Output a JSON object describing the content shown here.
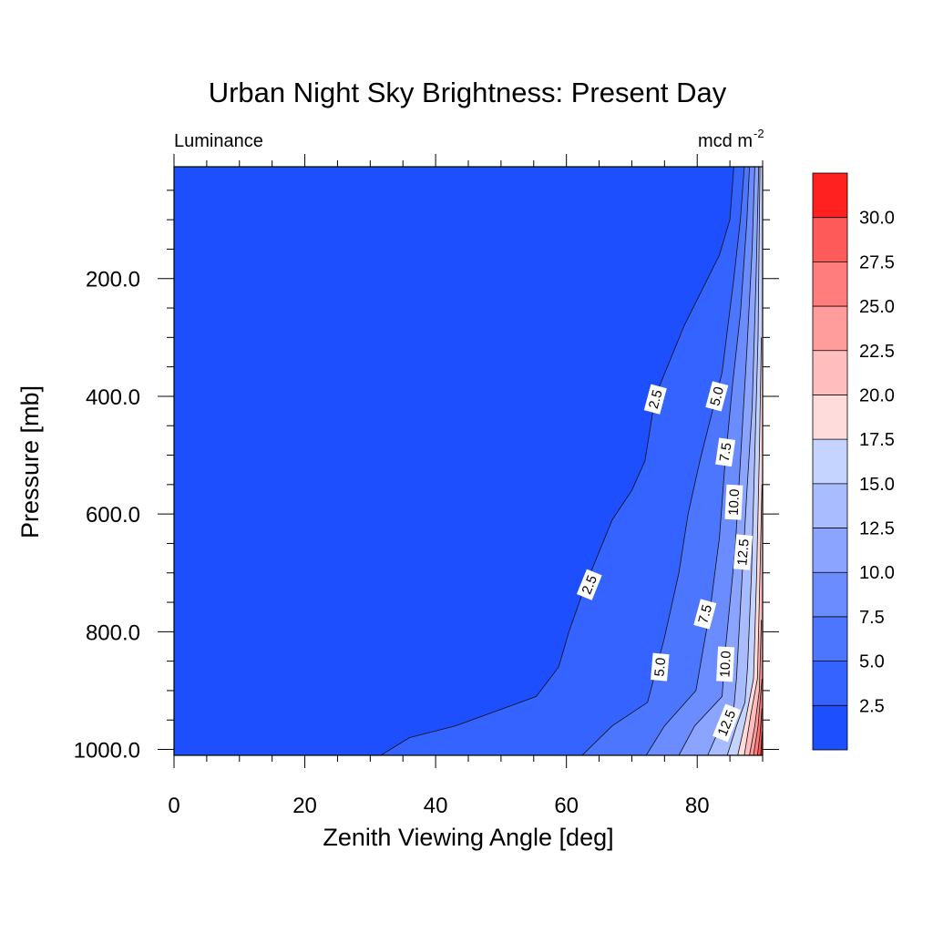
{
  "chart_data": {
    "type": "contour",
    "title": "Urban Night Sky Brightness: Present Day",
    "left_subtitle": "Luminance",
    "right_subtitle": "mcd m",
    "right_subtitle_sup": "-2",
    "xlabel": "Zenith Viewing Angle [deg]",
    "ylabel": "Pressure [mb]",
    "xlim": [
      0,
      90
    ],
    "ylim": [
      1010,
      10
    ],
    "xticks": [
      0,
      20,
      40,
      60,
      80
    ],
    "yticks": [
      200,
      400,
      600,
      800,
      1000
    ],
    "xtick_labels": [
      "0",
      "20",
      "40",
      "60",
      "80"
    ],
    "ytick_labels": [
      "200.0",
      "400.0",
      "600.0",
      "800.0",
      "1000.0"
    ],
    "colorbar": {
      "levels": [
        "2.5",
        "5.0",
        "7.5",
        "10.0",
        "12.5",
        "15.0",
        "17.5",
        "20.0",
        "22.5",
        "25.0",
        "27.5",
        "30.0"
      ],
      "colors": [
        "#1e4fff",
        "#3563ff",
        "#4d76ff",
        "#6a8cff",
        "#8aa4ff",
        "#a8bcff",
        "#c5d3ff",
        "#ffdcdc",
        "#ffbdbd",
        "#ff9d9d",
        "#ff7d7d",
        "#ff5a5a",
        "#ff2020"
      ]
    },
    "contours": [
      {
        "level": 2.5,
        "points": [
          [
            85.6,
            10
          ],
          [
            85.0,
            100
          ],
          [
            83.4,
            160
          ],
          [
            78,
            280
          ],
          [
            73.6,
            400
          ],
          [
            72,
            510
          ],
          [
            70,
            560
          ],
          [
            67,
            610
          ],
          [
            62.6,
            730
          ],
          [
            60.4,
            800
          ],
          [
            58.8,
            860
          ],
          [
            55.4,
            910
          ],
          [
            48,
            940
          ],
          [
            43,
            960
          ],
          [
            36,
            980
          ],
          [
            31.6,
            1010
          ]
        ]
      },
      {
        "level": 5.0,
        "points": [
          [
            87.2,
            10
          ],
          [
            86.6,
            100
          ],
          [
            85.6,
            200
          ],
          [
            83.8,
            360
          ],
          [
            80.4,
            510
          ],
          [
            78.6,
            600
          ],
          [
            77.2,
            700
          ],
          [
            75,
            810
          ],
          [
            72.4,
            920
          ],
          [
            67,
            960
          ],
          [
            62.4,
            1010
          ]
        ]
      },
      {
        "level": 7.5,
        "points": [
          [
            88.0,
            10
          ],
          [
            87.6,
            100
          ],
          [
            86.6,
            260
          ],
          [
            85.4,
            380
          ],
          [
            84.2,
            520
          ],
          [
            83.4,
            640
          ],
          [
            82.0,
            760
          ],
          [
            79.8,
            900
          ],
          [
            75,
            960
          ],
          [
            72.2,
            1010
          ]
        ]
      },
      {
        "level": 10.0,
        "points": [
          [
            88.8,
            10
          ],
          [
            88.4,
            150
          ],
          [
            87.6,
            320
          ],
          [
            86.6,
            510
          ],
          [
            85.8,
            660
          ],
          [
            84.4,
            820
          ],
          [
            83.8,
            910
          ],
          [
            79.6,
            960
          ],
          [
            77.2,
            1010
          ]
        ]
      },
      {
        "level": 12.5,
        "points": [
          [
            89.4,
            10
          ],
          [
            89.0,
            200
          ],
          [
            88.4,
            420
          ],
          [
            87.6,
            560
          ],
          [
            86.8,
            720
          ],
          [
            86.0,
            880
          ],
          [
            85.6,
            930
          ],
          [
            82.8,
            980
          ],
          [
            81.6,
            1010
          ]
        ]
      },
      {
        "level": 15.0,
        "points": [
          [
            89.6,
            10
          ],
          [
            89.3,
            300
          ],
          [
            88.8,
            500
          ],
          [
            88.3,
            700
          ],
          [
            87.7,
            860
          ],
          [
            87.3,
            920
          ],
          [
            86.0,
            960
          ],
          [
            84.6,
            1010
          ]
        ]
      },
      {
        "level": 17.5,
        "points": [
          [
            89.8,
            300
          ],
          [
            89.5,
            500
          ],
          [
            89.1,
            700
          ],
          [
            88.6,
            880
          ],
          [
            87.4,
            950
          ],
          [
            86.2,
            1010
          ]
        ]
      },
      {
        "level": 20.0,
        "points": [
          [
            89.9,
            550
          ],
          [
            89.6,
            700
          ],
          [
            89.2,
            880
          ],
          [
            88.2,
            940
          ],
          [
            87.2,
            1010
          ]
        ]
      },
      {
        "level": 22.5,
        "points": [
          [
            89.8,
            780
          ],
          [
            89.5,
            900
          ],
          [
            88.8,
            960
          ],
          [
            88.0,
            1010
          ]
        ]
      },
      {
        "level": 25.0,
        "points": [
          [
            89.9,
            880
          ],
          [
            89.3,
            960
          ],
          [
            88.6,
            1010
          ]
        ]
      },
      {
        "level": 27.5,
        "points": [
          [
            89.9,
            930
          ],
          [
            89.6,
            975
          ],
          [
            89.2,
            1010
          ]
        ]
      },
      {
        "level": 30.0,
        "points": [
          [
            89.95,
            970
          ],
          [
            89.7,
            1010
          ]
        ]
      }
    ],
    "line_labels": [
      {
        "text": "2.5",
        "x": 73.6,
        "y": 405,
        "angle": -75
      },
      {
        "text": "2.5",
        "x": 63.5,
        "y": 720,
        "angle": -68
      },
      {
        "text": "5.0",
        "x": 83.0,
        "y": 400,
        "angle": -75
      },
      {
        "text": "5.0",
        "x": 74.3,
        "y": 860,
        "angle": -85
      },
      {
        "text": "7.5",
        "x": 84.3,
        "y": 495,
        "angle": -82
      },
      {
        "text": "7.5",
        "x": 81.2,
        "y": 770,
        "angle": -75
      },
      {
        "text": "10.0",
        "x": 85.6,
        "y": 580,
        "angle": -87
      },
      {
        "text": "10.0",
        "x": 84.3,
        "y": 855,
        "angle": -87
      },
      {
        "text": "12.5",
        "x": 87.0,
        "y": 665,
        "angle": -85
      },
      {
        "text": "12.5",
        "x": 84.5,
        "y": 955,
        "angle": -68
      }
    ]
  }
}
